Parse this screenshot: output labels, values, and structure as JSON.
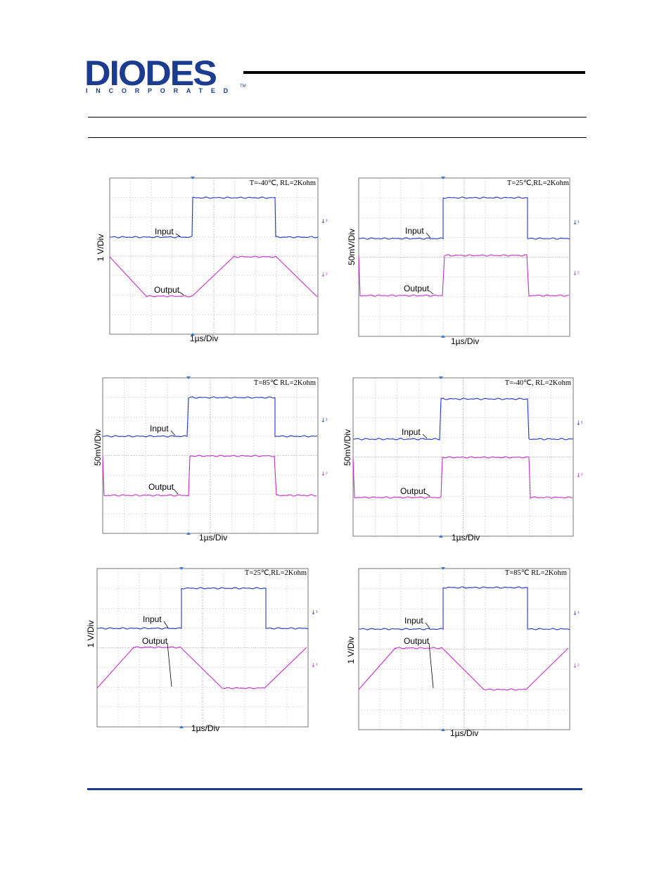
{
  "header": {
    "logo_word": "DIODES",
    "logo_sub": "INCORPORATED",
    "logo_tm": "TM"
  },
  "colors": {
    "brand": "#1b3c8f",
    "input_trace": "#2036c8",
    "output_trace": "#c62fc8",
    "grid": "#9a9a9a",
    "marker": "#3a7bd5"
  },
  "scopes": [
    {
      "condition": "T=-40℃, RL=2Kohm",
      "y_label": "1 V/Div",
      "x_label": "1µs/Div",
      "input_label": "Input",
      "output_label": "Output",
      "output_shape": "ramp-up-first-low",
      "ch1_marker": "↓¹",
      "ch2_marker": "↓²"
    },
    {
      "condition": "T=25℃,RL=2Kohm",
      "y_label": "50mV/Div",
      "x_label": "1µs/Div",
      "input_label": "Input",
      "output_label": "Output",
      "output_shape": "square",
      "ch1_marker": "↓¹",
      "ch2_marker": "↓²"
    },
    {
      "condition": "T=85℃ RL=2Kohm",
      "y_label": "50mV/Div",
      "x_label": "1µs/Div",
      "input_label": "Input",
      "output_label": "Output",
      "output_shape": "square",
      "ch1_marker": "↓¹",
      "ch2_marker": "↓²"
    },
    {
      "condition": "T=-40℃, RL=2Kohm",
      "y_label": "50mV/Div",
      "x_label": "1µs/Div",
      "input_label": "Input",
      "output_label": "Output",
      "output_shape": "square",
      "ch1_marker": "↓¹",
      "ch2_marker": "↓²"
    },
    {
      "condition": "T=25℃,RL=2Kohm",
      "y_label": "1 V/Div",
      "x_label": "1µs/Div",
      "input_label": "Input",
      "output_label": "Output",
      "output_shape": "ramp-trapezoid",
      "ch1_marker": "↓¹",
      "ch2_marker": "↓²"
    },
    {
      "condition": "T=85℃ RL=2Kohm",
      "y_label": "1 V/Div",
      "x_label": "1µs/Div",
      "input_label": "Input",
      "output_label": "Output",
      "output_shape": "ramp-trapezoid",
      "ch1_marker": "↓¹",
      "ch2_marker": "↓²"
    }
  ]
}
